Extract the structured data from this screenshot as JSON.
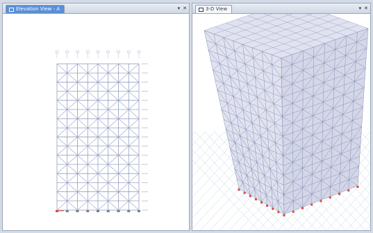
{
  "panes": {
    "left": {
      "tab_label": "Elevation View - A",
      "pin_glyph": "▾",
      "close_glyph": "✕"
    },
    "right": {
      "tab_label": "3-D View",
      "pin_glyph": "▾",
      "close_glyph": "✕"
    }
  },
  "colors": {
    "background": "#d4dbe6",
    "active_tab": "#5b8fd6",
    "frame_member": "#8390b7",
    "brace": "#9aa3c6",
    "support": "#d94a3c",
    "grid_ground": "#d9e4ec"
  }
}
